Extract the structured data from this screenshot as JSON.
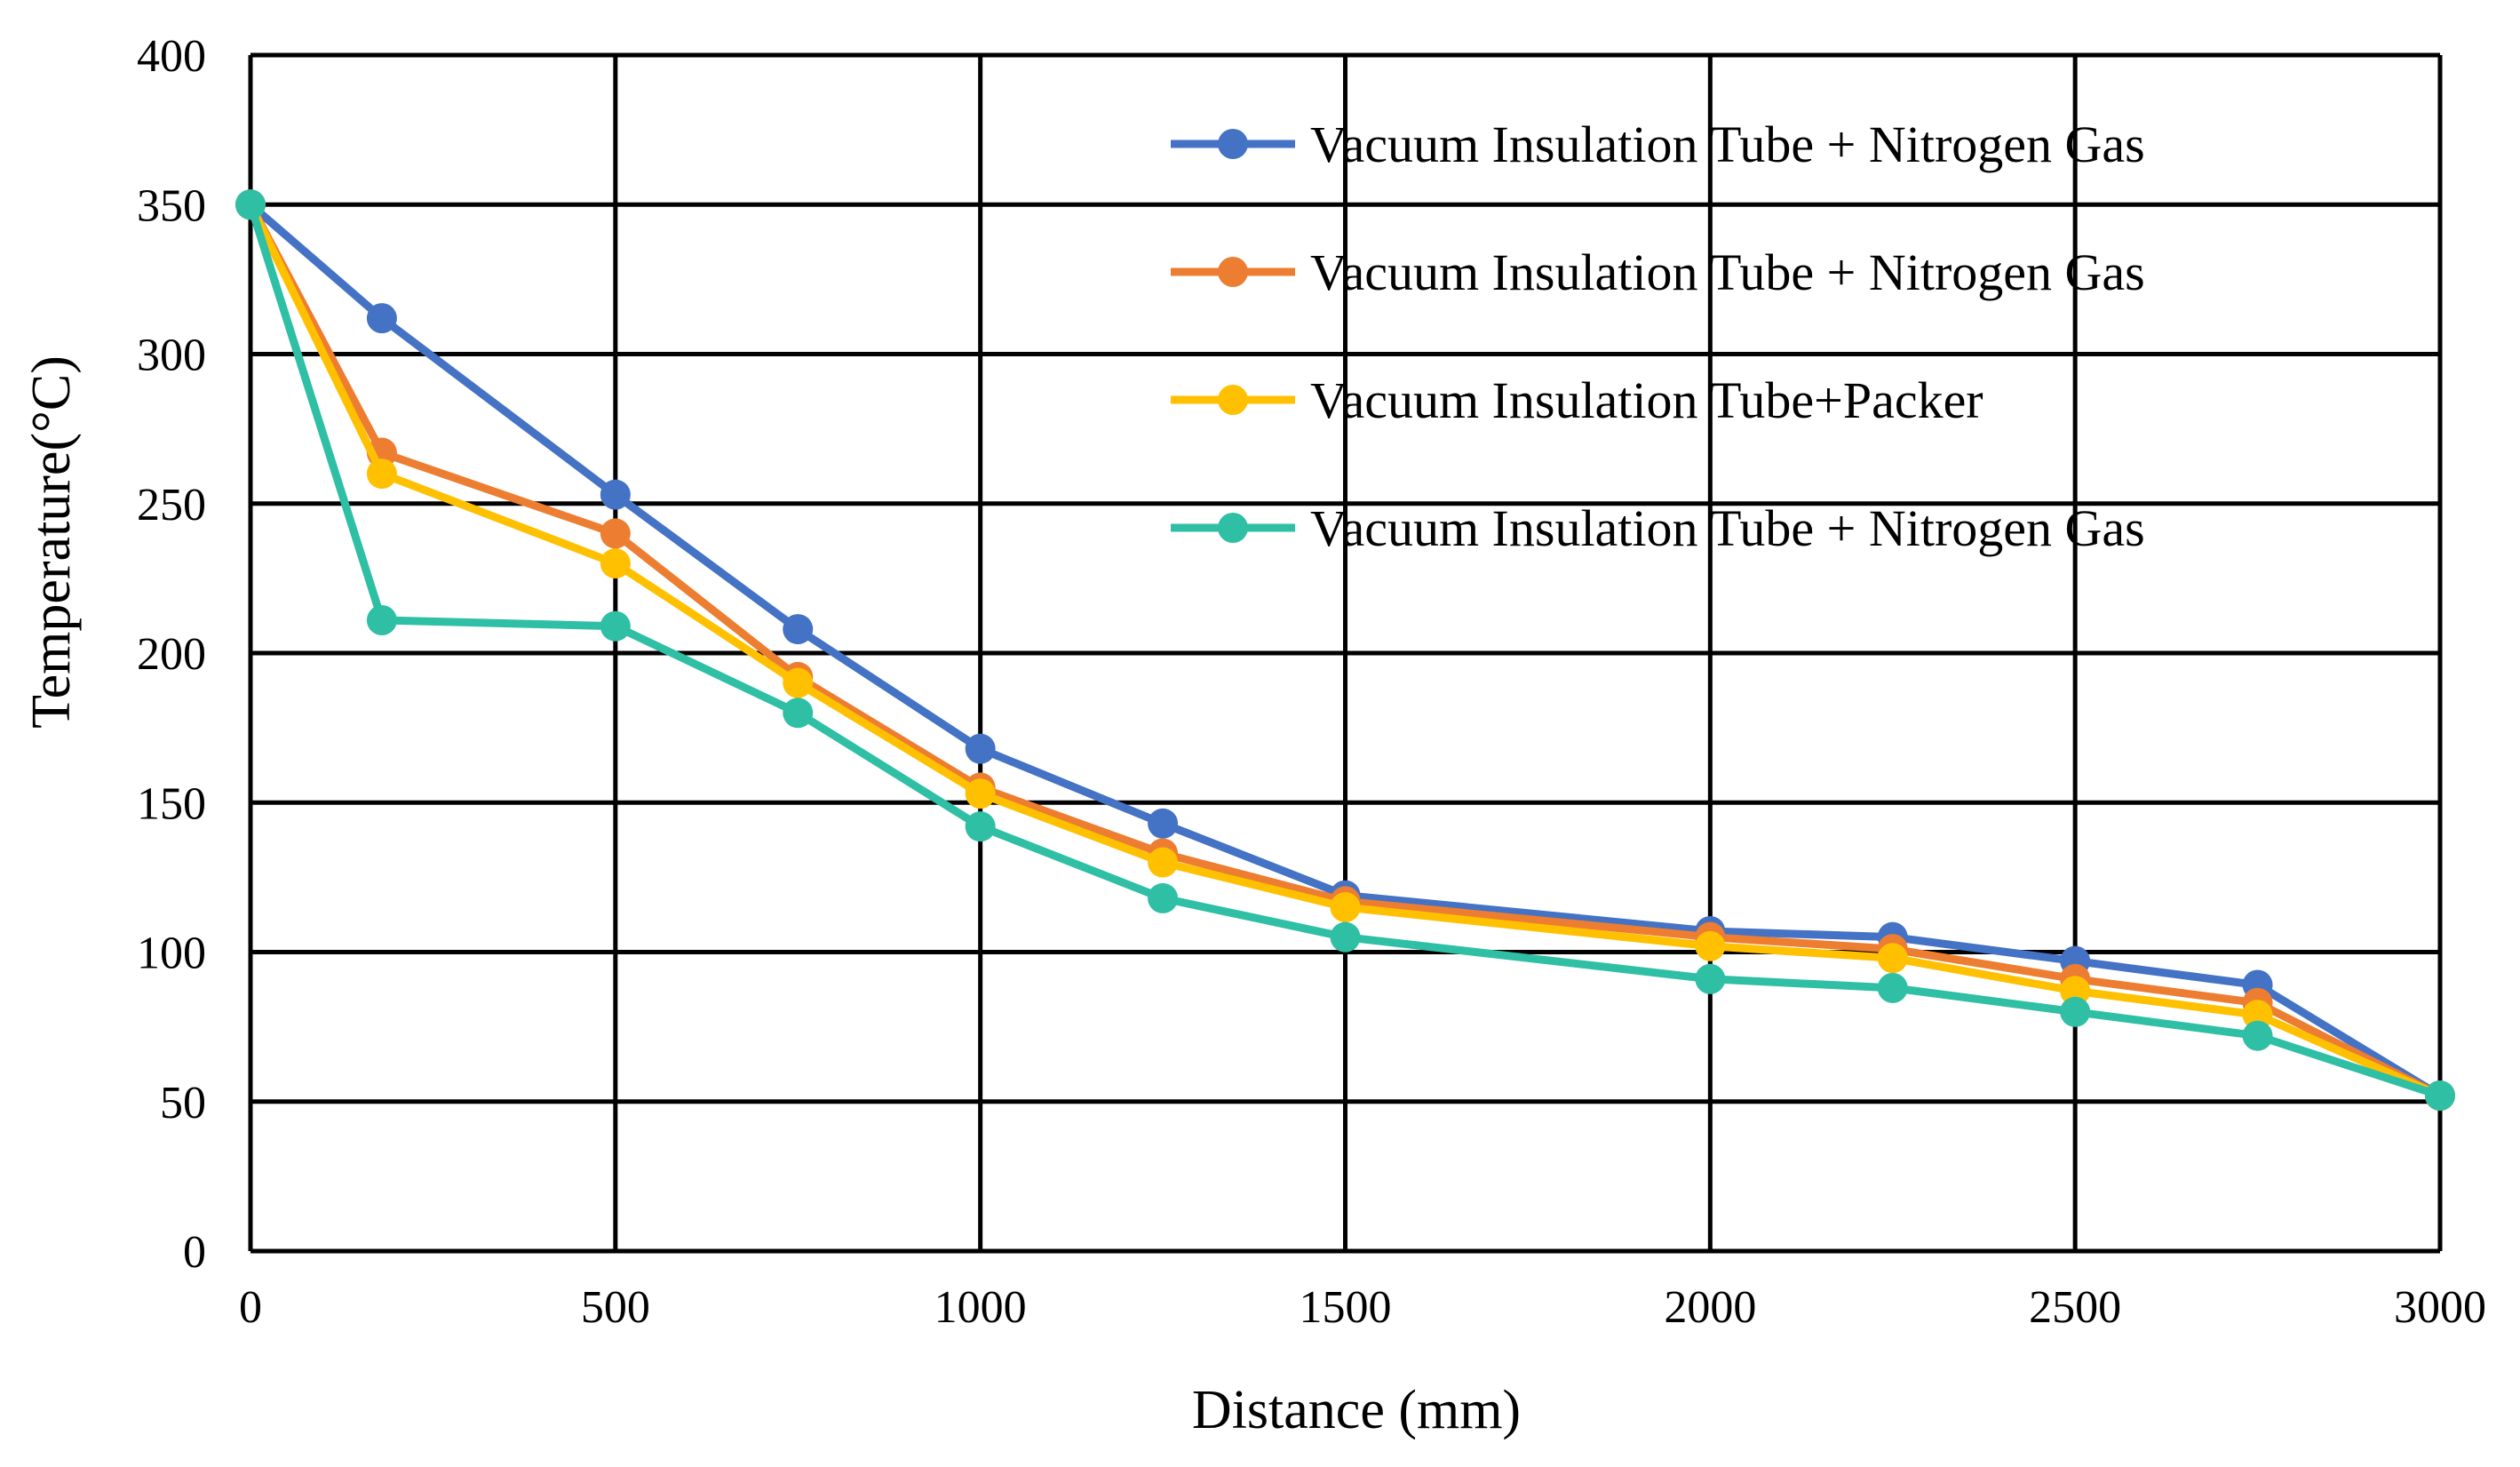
{
  "chart_data": {
    "type": "line",
    "title": "",
    "xlabel": "Distance (mm)",
    "ylabel": "Temperature(°C)",
    "xlim": [
      0,
      3000
    ],
    "ylim": [
      0,
      400
    ],
    "xticks": [
      0,
      500,
      1000,
      1500,
      2000,
      2500,
      3000
    ],
    "yticks": [
      0,
      50,
      100,
      150,
      200,
      250,
      300,
      350,
      400
    ],
    "grid": true,
    "legend_position": "top-right",
    "x": [
      0,
      180,
      500,
      750,
      1000,
      1250,
      1500,
      2000,
      2250,
      2500,
      2750,
      3000
    ],
    "series": [
      {
        "name": "Vacuum Insulation Tube + Nitrogen Gas",
        "color": "#4472C4",
        "values": [
          350,
          312,
          253,
          208,
          168,
          143,
          119,
          107,
          105,
          97,
          89,
          52
        ]
      },
      {
        "name": "Vacuum Insulation Tube + Nitrogen Gas",
        "color": "#ED7D31",
        "values": [
          350,
          267,
          240,
          192,
          155,
          133,
          117,
          105,
          101,
          91,
          83,
          52
        ]
      },
      {
        "name": "Vacuum Insulation Tube+Packer",
        "color": "#FFC000",
        "values": [
          350,
          260,
          230,
          190,
          153,
          130,
          115,
          102,
          98,
          87,
          79,
          52
        ]
      },
      {
        "name": "Vacuum Insulation Tube + Nitrogen Gas",
        "color": "#2EBFA5",
        "values": [
          350,
          211,
          209,
          180,
          142,
          118,
          105,
          91,
          88,
          80,
          72,
          52
        ]
      }
    ]
  }
}
